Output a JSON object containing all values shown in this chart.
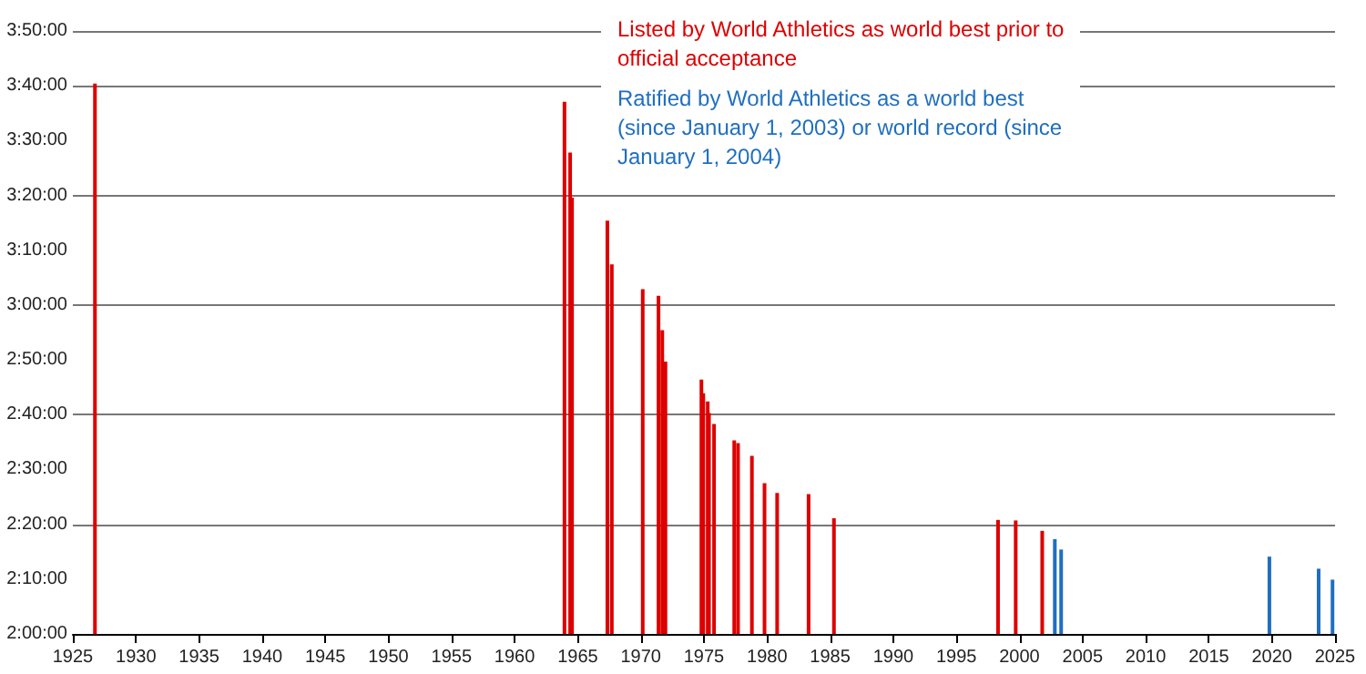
{
  "chart_data": {
    "type": "bar",
    "xlim": [
      1925,
      2025
    ],
    "xticks": [
      1925,
      1930,
      1935,
      1940,
      1945,
      1950,
      1955,
      1960,
      1965,
      1970,
      1975,
      1980,
      1985,
      1990,
      1995,
      2000,
      2005,
      2010,
      2015,
      2020,
      2025
    ],
    "ylim": [
      120,
      230
    ],
    "yticks": [
      {
        "value": 120,
        "label": "2:00:00"
      },
      {
        "value": 130,
        "label": "2:10:00"
      },
      {
        "value": 140,
        "label": "2:20:00"
      },
      {
        "value": 150,
        "label": "2:30:00"
      },
      {
        "value": 160,
        "label": "2:40:00"
      },
      {
        "value": 170,
        "label": "2:50:00"
      },
      {
        "value": 180,
        "label": "3:00:00"
      },
      {
        "value": 190,
        "label": "3:10:00"
      },
      {
        "value": 200,
        "label": "3:20:00"
      },
      {
        "value": 210,
        "label": "3:30:00"
      },
      {
        "value": 220,
        "label": "3:40:00"
      },
      {
        "value": 230,
        "label": "3:50:00"
      }
    ],
    "grid": "y",
    "legend": "top right",
    "series": [
      {
        "name": "Listed by World Athletics as world best prior to official acceptance",
        "color": "#dd0000",
        "x": [
          1926.75,
          1963.95,
          1964.4,
          1964.55,
          1967.35,
          1967.7,
          1970.15,
          1971.4,
          1971.7,
          1971.95,
          1974.8,
          1974.95,
          1975.3,
          1975.4,
          1975.8,
          1977.4,
          1977.7,
          1978.8,
          1979.8,
          1980.8,
          1983.29,
          1985.3,
          1998.3,
          1999.7,
          2001.8
        ],
        "values": [
          220.4,
          217.1,
          207.8,
          199.6,
          195.4,
          187.4,
          182.9,
          181.7,
          175.4,
          169.7,
          166.4,
          163.9,
          162.4,
          160.3,
          158.3,
          155.3,
          154.8,
          152.5,
          147.5,
          145.7,
          145.5,
          141.1,
          140.8,
          140.7,
          138.8
        ]
      },
      {
        "name": "Ratified by World Athletics as a world best (since January 1, 2003) or world record (since January 1, 2004)",
        "color": "#1f6fbf",
        "x": [
          2002.8,
          2003.3,
          2019.8,
          2023.7,
          2024.8
        ],
        "values": [
          137.3,
          135.4,
          134.1,
          131.9,
          129.9
        ]
      }
    ]
  }
}
